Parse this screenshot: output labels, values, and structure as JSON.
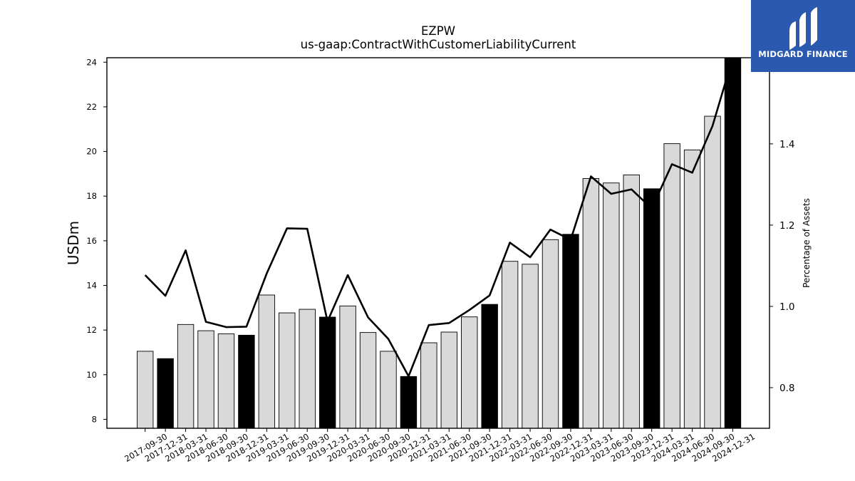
{
  "brand": {
    "name": "MIDGARD FINANCE",
    "color": "#2b59b0"
  },
  "chart_data": {
    "type": "bar",
    "title": "EZPW",
    "subtitle": "us-gaap:ContractWithCustomerLiabilityCurrent",
    "ylabel": "USDm",
    "y2label": "Percentage of Assets",
    "ylim": [
      7.6,
      24.2
    ],
    "y2lim": [
      0.7,
      1.612
    ],
    "yticks": [
      8,
      10,
      12,
      14,
      16,
      18,
      20,
      22,
      24
    ],
    "y2ticks": [
      0.8,
      1.0,
      1.2,
      1.4
    ],
    "categories": [
      "2017-09-30",
      "2017-12-31",
      "2018-03-31",
      "2018-06-30",
      "2018-09-30",
      "2018-12-31",
      "2019-03-31",
      "2019-06-30",
      "2019-09-30",
      "2019-12-31",
      "2020-03-31",
      "2020-06-30",
      "2020-09-30",
      "2020-12-31",
      "2021-03-31",
      "2021-06-30",
      "2021-09-30",
      "2021-12-31",
      "2022-03-31",
      "2022-06-30",
      "2022-09-30",
      "2022-12-31",
      "2023-03-31",
      "2023-06-30",
      "2023-09-30",
      "2023-12-31",
      "2024-03-31",
      "2024-06-30",
      "2024-09-30",
      "2024-12-31"
    ],
    "series": [
      {
        "kind": "bar",
        "values": [
          11.05,
          10.72,
          12.25,
          11.97,
          11.83,
          11.77,
          13.57,
          12.77,
          12.93,
          12.58,
          13.08,
          11.89,
          11.05,
          9.92,
          11.43,
          11.91,
          12.59,
          13.15,
          15.08,
          14.95,
          16.05,
          16.29,
          18.79,
          18.59,
          18.95,
          18.33,
          20.35,
          20.07,
          21.58,
          24.2
        ],
        "highlight_color": "#000000",
        "base_color": "#d9d9d9"
      },
      {
        "kind": "line",
        "axis": "right",
        "values": [
          1.077,
          1.026,
          1.138,
          0.962,
          0.949,
          0.95,
          1.081,
          1.192,
          1.191,
          0.963,
          1.077,
          0.973,
          0.92,
          0.828,
          0.954,
          0.959,
          0.991,
          1.027,
          1.157,
          1.121,
          1.189,
          1.164,
          1.32,
          1.277,
          1.288,
          1.241,
          1.35,
          1.329,
          1.444,
          1.612
        ],
        "color": "#000000"
      }
    ],
    "highlight_every": "Q4 (December)",
    "grid": false,
    "legend": "none"
  }
}
